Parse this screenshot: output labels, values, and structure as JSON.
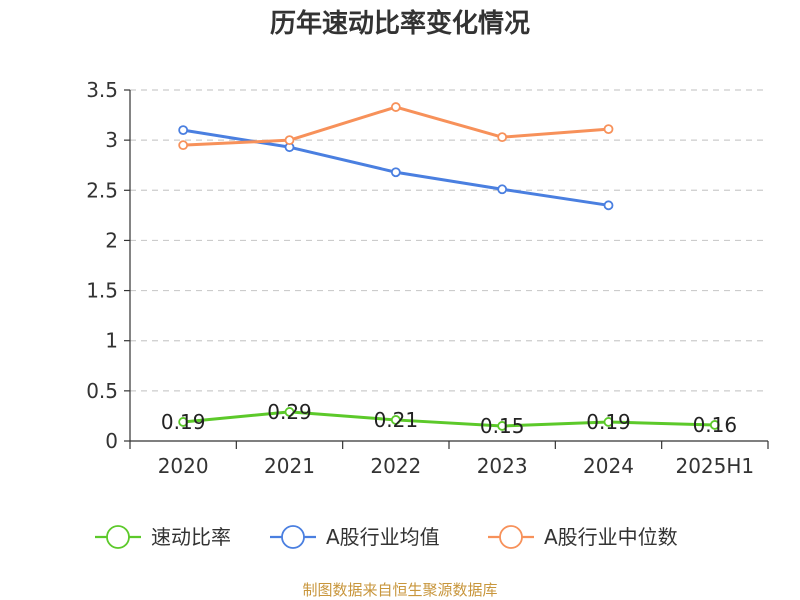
{
  "chart_data": {
    "type": "line",
    "title": "历年速动比率变化情况",
    "categories": [
      "2020",
      "2021",
      "2022",
      "2023",
      "2024",
      "2025H1"
    ],
    "ylim": [
      0,
      3.5
    ],
    "yticks": [
      0,
      0.5,
      1,
      1.5,
      2,
      2.5,
      3,
      3.5
    ],
    "ytick_labels": [
      "0",
      "0.5",
      "1",
      "1.5",
      "2",
      "2.5",
      "3",
      "3.5"
    ],
    "grid": true,
    "legend_position": "bottom",
    "series": [
      {
        "name": "速动比率",
        "color": "#5cc92a",
        "values": [
          0.19,
          0.29,
          0.21,
          0.15,
          0.19,
          0.16
        ],
        "labels": [
          "0.19",
          "0.29",
          "0.21",
          "0.15",
          "0.19",
          "0.16"
        ],
        "show_labels": true
      },
      {
        "name": "A股行业均值",
        "color": "#4a7fe0",
        "values": [
          3.1,
          2.93,
          2.68,
          2.51,
          2.35,
          null
        ],
        "show_labels": false
      },
      {
        "name": "A股行业中位数",
        "color": "#f7915a",
        "values": [
          2.95,
          3.0,
          3.33,
          3.03,
          3.11,
          null
        ],
        "show_labels": false
      }
    ]
  },
  "source": "制图数据来自恒生聚源数据库"
}
